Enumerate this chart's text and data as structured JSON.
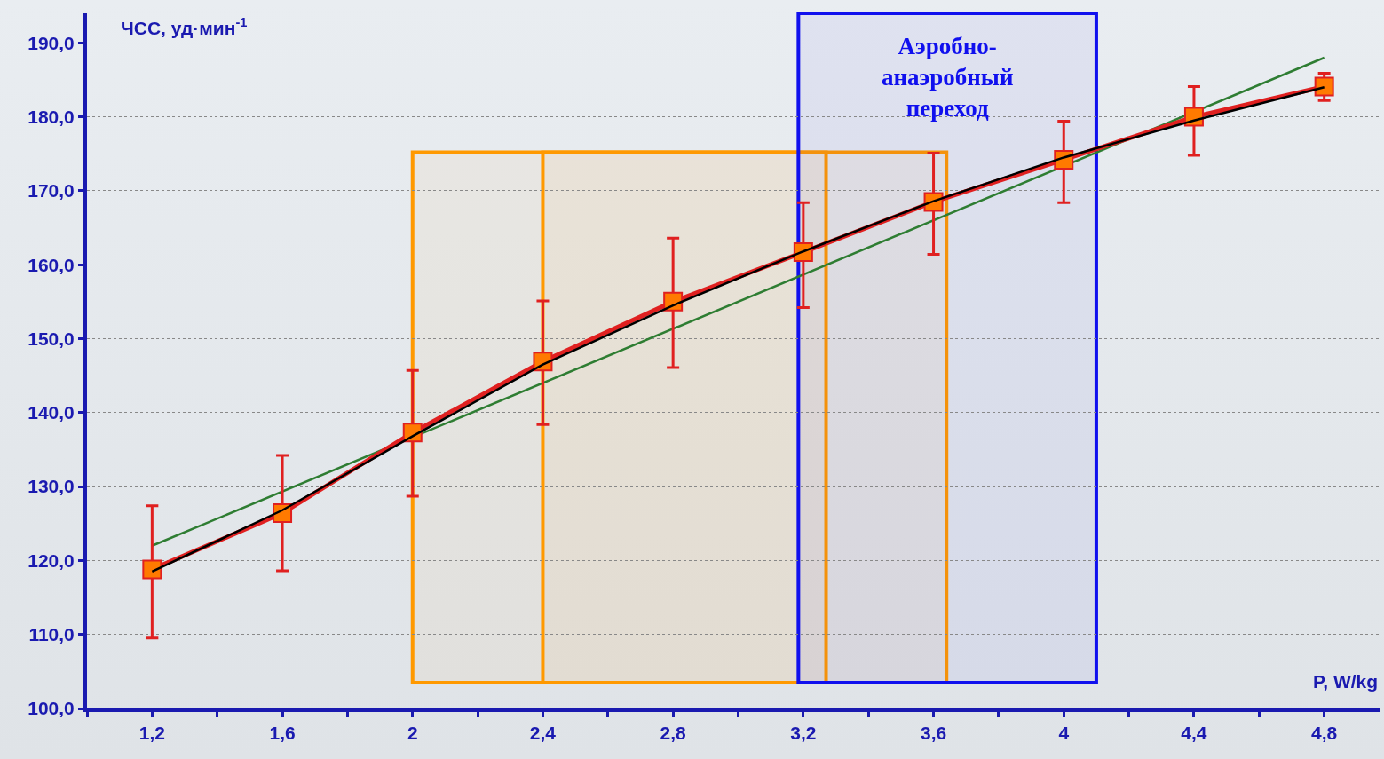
{
  "chart_data": {
    "type": "line",
    "xlabel": "P, W/kg",
    "ylabel": "ЧСС, уд·мин$^{-1}$",
    "xlim": [
      1,
      4.97
    ],
    "ylim": [
      100,
      194
    ],
    "xticks": [
      {
        "value": 1.2,
        "label": "1,2"
      },
      {
        "value": 1.6,
        "label": "1,6"
      },
      {
        "value": 2,
        "label": "2"
      },
      {
        "value": 2.4,
        "label": "2,4"
      },
      {
        "value": 2.8,
        "label": "2,8"
      },
      {
        "value": 3.2,
        "label": "3,2"
      },
      {
        "value": 3.6,
        "label": "3,6"
      },
      {
        "value": 4,
        "label": "4"
      },
      {
        "value": 4.4,
        "label": "4,4"
      },
      {
        "value": 4.8,
        "label": "4,8"
      }
    ],
    "yticks": [
      {
        "value": 100,
        "label": "100,0"
      },
      {
        "value": 110,
        "label": "110,0"
      },
      {
        "value": 120,
        "label": "120,0"
      },
      {
        "value": 130,
        "label": "130,0"
      },
      {
        "value": 140,
        "label": "140,0"
      },
      {
        "value": 150,
        "label": "150,0"
      },
      {
        "value": 160,
        "label": "160,0"
      },
      {
        "value": 170,
        "label": "170,0"
      },
      {
        "value": 180,
        "label": "180,0"
      },
      {
        "value": 190,
        "label": "190,0"
      }
    ],
    "grid": "y",
    "series": [
      {
        "color": "#2e7d32",
        "marker": "none",
        "x": [
          1.2,
          4.8
        ],
        "values": [
          122,
          188
        ]
      },
      {
        "color": "#e02020",
        "marker": "square",
        "x": [
          1.2,
          1.6,
          2,
          2.4,
          2.8,
          3.2,
          3.6,
          4,
          4.4,
          4.8
        ],
        "values": [
          118.8,
          126.4,
          137.3,
          146.9,
          155,
          161.7,
          168.5,
          174.2,
          180,
          184.1
        ],
        "errors": [
          [
            109.5,
            127.4
          ],
          [
            118.6,
            134.2
          ],
          [
            128.7,
            145.7
          ],
          [
            138.4,
            155.1
          ],
          [
            146.1,
            163.6
          ],
          [
            154.2,
            168.4
          ],
          [
            161.4,
            175.1
          ],
          [
            168.4,
            179.4
          ],
          [
            174.8,
            184.1
          ],
          [
            182.2,
            185.9
          ]
        ]
      },
      {
        "color": "#000000",
        "marker": "none",
        "x": [
          1.2,
          1.6,
          2,
          2.4,
          2.8,
          3.2,
          3.6,
          4,
          4.4,
          4.8
        ],
        "values": [
          118.5,
          126.8,
          136.8,
          146.5,
          154.5,
          161.8,
          168.6,
          174.5,
          179.5,
          184
        ]
      }
    ],
    "bands": [
      {
        "axis": "x",
        "from": 2,
        "to": 3.27,
        "color": "#ff9900"
      },
      {
        "axis": "x",
        "from": 2.4,
        "to": 3.64,
        "color": "#ff9900"
      },
      {
        "axis": "x",
        "from": 3.185,
        "to": 4.1,
        "color": "#1010ee",
        "label": "Аэробно-\nанаэробный\nпереход"
      }
    ]
  }
}
